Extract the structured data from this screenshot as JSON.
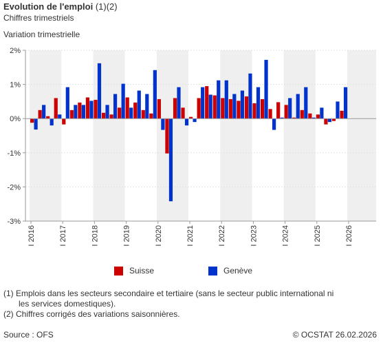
{
  "header": {
    "title": "Evolution de l'emploi",
    "title_suffix": " (1)(2)",
    "subtitle": "Chiffres trimestriels",
    "axis_title": "Variation trimestrielle"
  },
  "colors": {
    "suisse": "#cc0000",
    "geneve": "#0033cc"
  },
  "chart_data": {
    "type": "bar",
    "title": "Evolution de l'emploi (1)(2)",
    "subtitle": "Chiffres trimestriels",
    "ylabel": "Variation trimestrielle",
    "ylim": [
      -3,
      2
    ],
    "yticks": [
      "2%",
      "1%",
      "0%",
      "-1%",
      "-2%",
      "-3%"
    ],
    "ytick_values": [
      2,
      1,
      0,
      -1,
      -2,
      -3
    ],
    "grid": true,
    "legend_position": "bottom",
    "year_labels": [
      "I 2016",
      "I 2017",
      "I 2018",
      "I 2019",
      "I 2020",
      "I 2021",
      "I 2022",
      "I 2023",
      "I 2024",
      "I 2025",
      "I 2026"
    ],
    "categories": [
      "2016 Q1",
      "2016 Q2",
      "2016 Q3",
      "2016 Q4",
      "2017 Q1",
      "2017 Q2",
      "2017 Q3",
      "2017 Q4",
      "2018 Q1",
      "2018 Q2",
      "2018 Q3",
      "2018 Q4",
      "2019 Q1",
      "2019 Q2",
      "2019 Q3",
      "2019 Q4",
      "2020 Q1",
      "2020 Q2",
      "2020 Q3",
      "2020 Q4",
      "2021 Q1",
      "2021 Q2",
      "2021 Q3",
      "2021 Q4",
      "2022 Q1",
      "2022 Q2",
      "2022 Q3",
      "2022 Q4",
      "2023 Q1",
      "2023 Q2",
      "2023 Q3",
      "2023 Q4",
      "2024 Q1",
      "2024 Q2",
      "2024 Q3",
      "2024 Q4",
      "2025 Q1",
      "2025 Q2",
      "2025 Q3",
      "2025 Q4"
    ],
    "series": [
      {
        "name": "Suisse",
        "color": "#cc0000",
        "values": [
          -0.12,
          0.25,
          0.07,
          0.6,
          -0.17,
          0.25,
          0.47,
          0.62,
          0.55,
          0.17,
          0.12,
          0.32,
          0.62,
          0.47,
          0.25,
          0.15,
          0.57,
          -1.02,
          0.6,
          0.32,
          0.05,
          0.6,
          0.95,
          0.68,
          0.6,
          0.57,
          0.52,
          0.65,
          0.45,
          0.57,
          0.28,
          0.48,
          0.4,
          0.03,
          0.25,
          0.15,
          0.12,
          -0.17,
          -0.07,
          0.23
        ]
      },
      {
        "name": "Genève",
        "color": "#0033cc",
        "values": [
          -0.32,
          0.4,
          -0.2,
          0.12,
          0.92,
          0.4,
          0.4,
          0.52,
          1.62,
          0.4,
          0.72,
          1.02,
          0.32,
          0.82,
          0.72,
          1.42,
          -0.33,
          -2.42,
          0.92,
          -0.2,
          -0.1,
          0.92,
          0.7,
          1.12,
          1.12,
          0.72,
          0.82,
          1.32,
          0.92,
          1.72,
          -0.33,
          0.03,
          0.6,
          0.72,
          0.92,
          0.03,
          0.32,
          -0.1,
          0.5,
          0.92
        ]
      }
    ]
  },
  "legend": {
    "suisse": "Suisse",
    "geneve": "Genève"
  },
  "footer": {
    "note1": "(1) Emplois dans les secteurs secondaire et tertiaire (sans le secteur public international ni",
    "note1b": "les services domestiques).",
    "note2": "(2) Chiffres corrigés des variations saisonnières.",
    "source": "Source : OFS",
    "copyright": "© OCSTAT 26.02.2026"
  }
}
